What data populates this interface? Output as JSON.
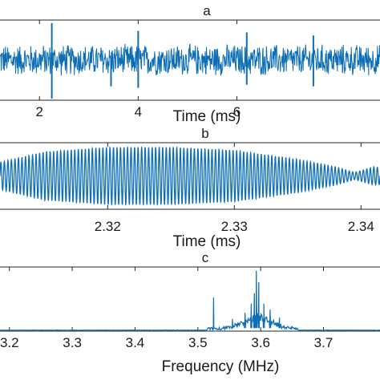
{
  "colors": {
    "series": "#0d6eb5",
    "axis": "#262626"
  },
  "chart_data": [
    {
      "panel": "a",
      "type": "line",
      "title": "a",
      "xlabel": "Time (ms)",
      "ylabel": "",
      "x_ticks": [
        2,
        4,
        6
      ],
      "x_tick_labels": [
        "2",
        "4",
        "6"
      ],
      "xlim": [
        1.2,
        8.9
      ],
      "ylim": [
        -1.3,
        1.3
      ],
      "grid": false,
      "series": [
        {
          "description_type": "broadband noise-like signal",
          "amplitude_envelope": 0.55,
          "spikes": [
            {
              "x": 2.25,
              "y": 1.2
            },
            {
              "x": 2.25,
              "y": -1.25
            },
            {
              "x": 4.0,
              "y": 0.95
            },
            {
              "x": 4.0,
              "y": -0.9
            },
            {
              "x": 3.45,
              "y": -0.85
            },
            {
              "x": 6.2,
              "y": 0.9
            },
            {
              "x": 6.2,
              "y": -0.8
            },
            {
              "x": 7.55,
              "y": 0.8
            },
            {
              "x": 7.55,
              "y": -0.85
            }
          ]
        }
      ]
    },
    {
      "panel": "b",
      "type": "line",
      "title": "b",
      "xlabel": "Time (ms)",
      "ylabel": "",
      "x_ticks": [
        2.32,
        2.33,
        2.34
      ],
      "x_tick_labels": [
        "2.32",
        "2.33",
        "2.34"
      ],
      "xlim": [
        2.3115,
        2.3415
      ],
      "ylim": [
        -1.1,
        1.1
      ],
      "grid": false,
      "series": [
        {
          "description_type": "amplitude-modulated carrier",
          "carrier_frequency_mhz": 3.6,
          "envelope": [
            {
              "x": 2.3115,
              "a": 0.45
            },
            {
              "x": 2.315,
              "a": 0.8
            },
            {
              "x": 2.32,
              "a": 0.95
            },
            {
              "x": 2.325,
              "a": 0.95
            },
            {
              "x": 2.33,
              "a": 0.85
            },
            {
              "x": 2.335,
              "a": 0.55
            },
            {
              "x": 2.338,
              "a": 0.3
            },
            {
              "x": 2.3395,
              "a": 0.12
            },
            {
              "x": 2.341,
              "a": 0.3
            },
            {
              "x": 2.3415,
              "a": 0.28
            }
          ]
        }
      ]
    },
    {
      "panel": "c",
      "type": "line",
      "title": "c",
      "xlabel": "Frequency (MHz)",
      "ylabel": "",
      "x_ticks": [
        3.2,
        3.3,
        3.4,
        3.5,
        3.6,
        3.7
      ],
      "x_tick_labels": [
        "3.2",
        "3.3",
        "3.4",
        "3.5",
        "3.6",
        "3.7"
      ],
      "xlim": [
        3.185,
        3.79
      ],
      "ylim": [
        0,
        1.05
      ],
      "grid": false,
      "series": [
        {
          "description_type": "magnitude spectrum",
          "peaks": [
            {
              "x": 3.525,
              "y": 0.55
            },
            {
              "x": 3.555,
              "y": 0.2
            },
            {
              "x": 3.575,
              "y": 0.3
            },
            {
              "x": 3.585,
              "y": 0.45
            },
            {
              "x": 3.59,
              "y": 0.62
            },
            {
              "x": 3.593,
              "y": 0.99
            },
            {
              "x": 3.597,
              "y": 0.8
            },
            {
              "x": 3.605,
              "y": 0.45
            },
            {
              "x": 3.615,
              "y": 0.35
            },
            {
              "x": 3.63,
              "y": 0.22
            }
          ]
        }
      ]
    }
  ]
}
